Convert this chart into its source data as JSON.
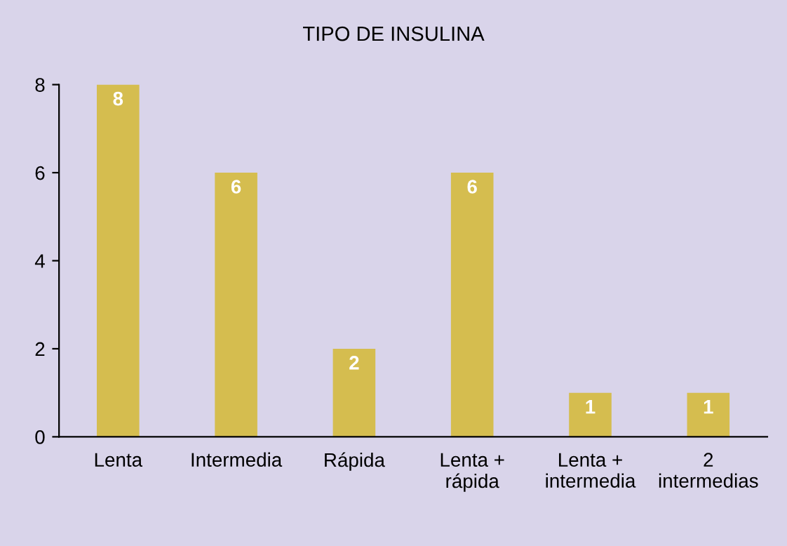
{
  "chart_data": {
    "type": "bar",
    "title": "TIPO DE INSULINA",
    "categories": [
      "Lenta",
      "Intermedia",
      "Rápida",
      "Lenta +\nrápida",
      "Lenta +\nintermedia",
      "2\nintermedias"
    ],
    "values": [
      8,
      6,
      2,
      6,
      1,
      1
    ],
    "color": "#d5bd4f",
    "ylim": [
      0,
      8
    ],
    "yticks": [
      0,
      2,
      4,
      6,
      8
    ],
    "data_labels": true,
    "grid": false
  }
}
